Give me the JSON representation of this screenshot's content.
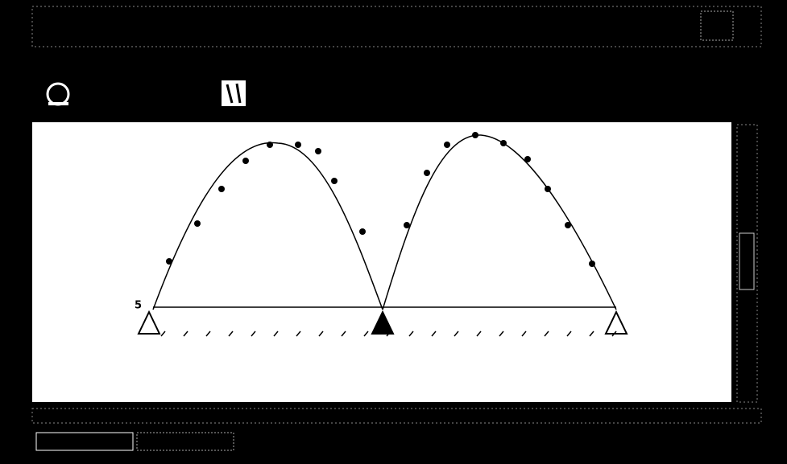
{
  "diagram": {
    "labels": [
      "5"
    ]
  }
}
